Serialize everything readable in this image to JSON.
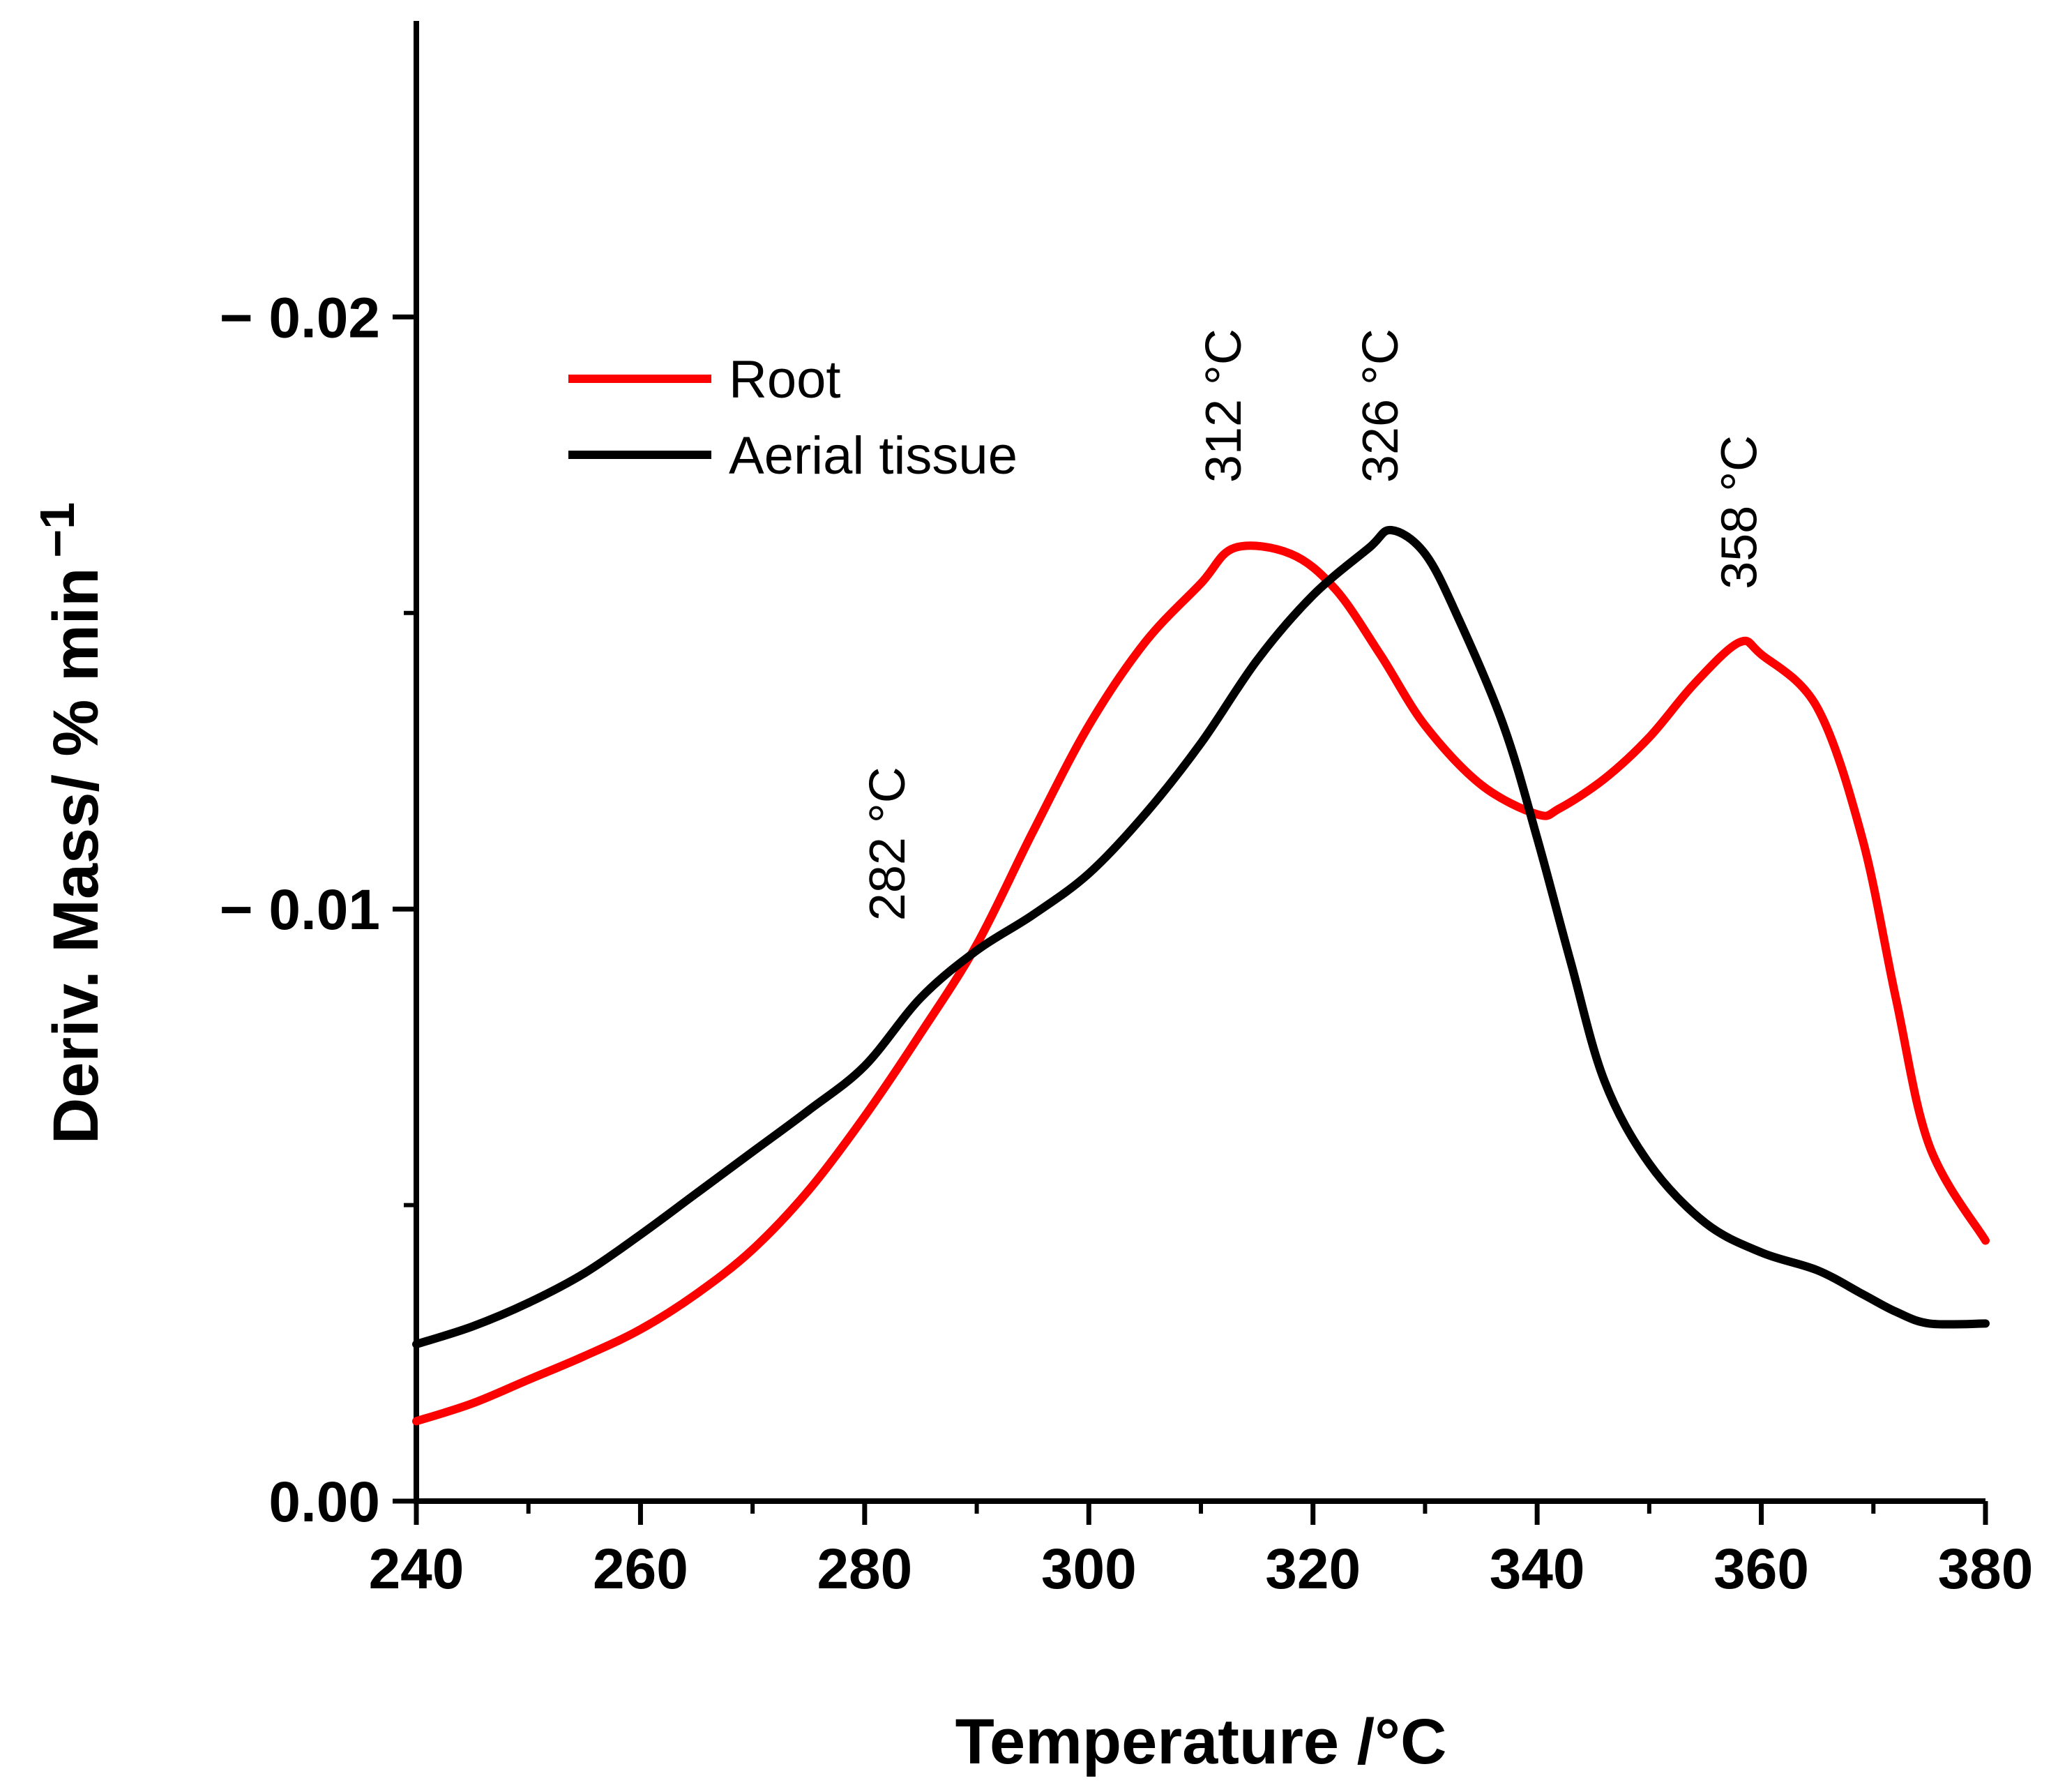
{
  "chart_data": {
    "type": "line",
    "title": "",
    "xlabel": "Temperature /°C",
    "ylabel": "Deriv. Mass/ % min",
    "ylabel_superscript": "−1",
    "xlim": [
      240,
      380
    ],
    "ylim": [
      0,
      0.025
    ],
    "x_ticks": [
      240,
      260,
      280,
      300,
      320,
      340,
      360,
      380
    ],
    "x_tick_labels": [
      "240",
      "260",
      "280",
      "300",
      "320",
      "340",
      "360",
      "380"
    ],
    "y_ticks": [
      0.0,
      0.01,
      0.02
    ],
    "y_tick_labels": [
      "0.00",
      "− 0.01",
      "− 0.02"
    ],
    "grid": false,
    "legend_position": "top-left",
    "series": [
      {
        "name": "Root",
        "color": "#ff0000",
        "x": [
          240,
          245,
          250,
          255,
          260,
          265,
          270,
          275,
          280,
          285,
          290,
          295,
          300,
          305,
          310,
          313,
          318,
          322,
          326,
          330,
          335,
          340,
          342,
          346,
          350,
          354,
          358,
          360,
          365,
          369,
          372,
          375,
          380
        ],
        "y": [
          0.00135,
          0.00165,
          0.00205,
          0.00245,
          0.0029,
          0.0035,
          0.00425,
          0.00525,
          0.0065,
          0.0079,
          0.0094,
          0.0113,
          0.0131,
          0.0145,
          0.0155,
          0.0161,
          0.016,
          0.0154,
          0.0143,
          0.0131,
          0.0121,
          0.0116,
          0.0117,
          0.0122,
          0.0129,
          0.0138,
          0.0145,
          0.0143,
          0.0134,
          0.0112,
          0.0085,
          0.006,
          0.0044
        ]
      },
      {
        "name": "Aerial tissue",
        "color": "#000000",
        "x": [
          240,
          245,
          250,
          255,
          260,
          265,
          270,
          275,
          280,
          285,
          290,
          295,
          300,
          305,
          310,
          315,
          320,
          325,
          327,
          330,
          333,
          337,
          340,
          343,
          346,
          350,
          355,
          360,
          365,
          369,
          372,
          375,
          380
        ],
        "y": [
          0.00265,
          0.00295,
          0.00335,
          0.00385,
          0.0045,
          0.0052,
          0.0059,
          0.0066,
          0.00735,
          0.0085,
          0.0093,
          0.0099,
          0.0106,
          0.0116,
          0.0128,
          0.0142,
          0.0153,
          0.0161,
          0.0164,
          0.016,
          0.0149,
          0.0131,
          0.0112,
          0.0091,
          0.0071,
          0.0057,
          0.0047,
          0.0042,
          0.0039,
          0.0035,
          0.0032,
          0.003,
          0.003
        ]
      }
    ],
    "annotations": [
      {
        "text": "282 °C",
        "x": 282,
        "y": 0.0098
      },
      {
        "text": "312 °C",
        "x": 312,
        "y": 0.0172
      },
      {
        "text": "326 °C",
        "x": 326,
        "y": 0.0172
      },
      {
        "text": "358 °C",
        "x": 358,
        "y": 0.0154
      }
    ]
  }
}
